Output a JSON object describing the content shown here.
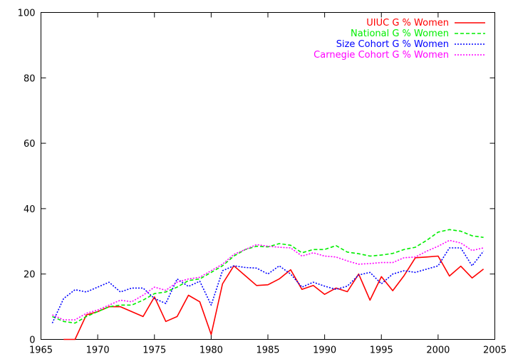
{
  "chart_data": {
    "type": "line",
    "title": "",
    "xlabel": "",
    "ylabel": "",
    "xlim": [
      1965,
      2005
    ],
    "ylim": [
      0,
      100
    ],
    "x_ticks": [
      1965,
      1970,
      1975,
      1980,
      1985,
      1990,
      1995,
      2000,
      2005
    ],
    "y_ticks": [
      0,
      20,
      40,
      60,
      80,
      100
    ],
    "grid": false,
    "legend_position": "top-right",
    "series": [
      {
        "name": "UIUC G % Women",
        "color": "#ff0000",
        "dash": "solid",
        "x": [
          1967,
          1968,
          1969,
          1970,
          1971,
          1972,
          1973,
          1974,
          1975,
          1976,
          1977,
          1978,
          1979,
          1980,
          1981,
          1982,
          1983,
          1984,
          1985,
          1986,
          1987,
          1988,
          1989,
          1990,
          1991,
          1992,
          1993,
          1994,
          1995,
          1996,
          1997,
          1998,
          1999,
          2000,
          2001,
          2002,
          2003,
          2004
        ],
        "y": [
          0,
          0,
          7.5,
          8.5,
          10,
          10,
          8.5,
          7,
          13,
          5.5,
          7,
          13.5,
          11.5,
          1.5,
          17,
          22.5,
          19.5,
          16.5,
          16.7,
          18.5,
          21.3,
          15.3,
          16.5,
          13.8,
          15.7,
          14.6,
          20,
          12,
          19.2,
          14.9,
          19.5,
          25,
          25.2,
          25.5,
          19.4,
          22.4,
          18.8,
          21.5
        ]
      },
      {
        "name": "National G % Women",
        "color": "#00ee00",
        "dash": "dashed",
        "x": [
          1966,
          1967,
          1968,
          1969,
          1970,
          1971,
          1972,
          1973,
          1974,
          1975,
          1976,
          1977,
          1978,
          1979,
          1980,
          1981,
          1982,
          1983,
          1984,
          1985,
          1986,
          1987,
          1988,
          1989,
          1990,
          1991,
          1992,
          1993,
          1994,
          1995,
          1996,
          1997,
          1998,
          1999,
          2000,
          2001,
          2002,
          2003,
          2004
        ],
        "y": [
          7,
          5.5,
          5,
          7,
          8.5,
          10,
          10.5,
          10.5,
          12,
          14,
          14.5,
          16,
          18,
          18.5,
          20.5,
          22.5,
          25.5,
          27.5,
          28.5,
          28.3,
          29.3,
          28.8,
          26.5,
          27.5,
          27.5,
          28.7,
          26.7,
          26.2,
          25.5,
          25.8,
          26.3,
          27.5,
          28.2,
          30.3,
          32.8,
          33.6,
          33.1,
          31.7,
          31.2
        ]
      },
      {
        "name": "Size Cohort G % Women",
        "color": "#0000ff",
        "dash": "dotted",
        "x": [
          1966,
          1967,
          1968,
          1969,
          1970,
          1971,
          1972,
          1973,
          1974,
          1975,
          1976,
          1977,
          1978,
          1979,
          1980,
          1981,
          1982,
          1983,
          1984,
          1985,
          1986,
          1987,
          1988,
          1989,
          1990,
          1991,
          1992,
          1993,
          1994,
          1995,
          1996,
          1997,
          1998,
          1999,
          2000,
          2001,
          2002,
          2003,
          2004
        ],
        "y": [
          5,
          12.5,
          15.2,
          14.5,
          16,
          17.5,
          14.5,
          15.7,
          15.7,
          12.5,
          11,
          18.5,
          16.2,
          17.8,
          10.5,
          21,
          22.5,
          22,
          21.8,
          20,
          22.5,
          20,
          16,
          17.5,
          16.3,
          15.3,
          16.3,
          19.7,
          20.5,
          17,
          20,
          21,
          20.5,
          21.5,
          22.5,
          28,
          28,
          22.5,
          27
        ]
      },
      {
        "name": "Carnegie Cohort G % Women",
        "color": "#ff00ff",
        "dash": "dotted",
        "x": [
          1966,
          1967,
          1968,
          1969,
          1970,
          1971,
          1972,
          1973,
          1974,
          1975,
          1976,
          1977,
          1978,
          1979,
          1980,
          1981,
          1982,
          1983,
          1984,
          1985,
          1986,
          1987,
          1988,
          1989,
          1990,
          1991,
          1992,
          1993,
          1994,
          1995,
          1996,
          1997,
          1998,
          1999,
          2000,
          2001,
          2002,
          2003,
          2004
        ],
        "y": [
          7.5,
          6,
          6,
          8,
          9,
          10.5,
          12,
          11.5,
          13.5,
          16,
          15,
          17.5,
          18.5,
          19,
          21,
          23,
          26,
          27.5,
          29,
          28.5,
          28.2,
          28,
          25.5,
          26.5,
          25.5,
          25.2,
          24,
          23,
          23.2,
          23.5,
          23.5,
          25,
          25.2,
          27,
          28.5,
          30.3,
          29.5,
          27.2,
          28
        ]
      }
    ]
  }
}
